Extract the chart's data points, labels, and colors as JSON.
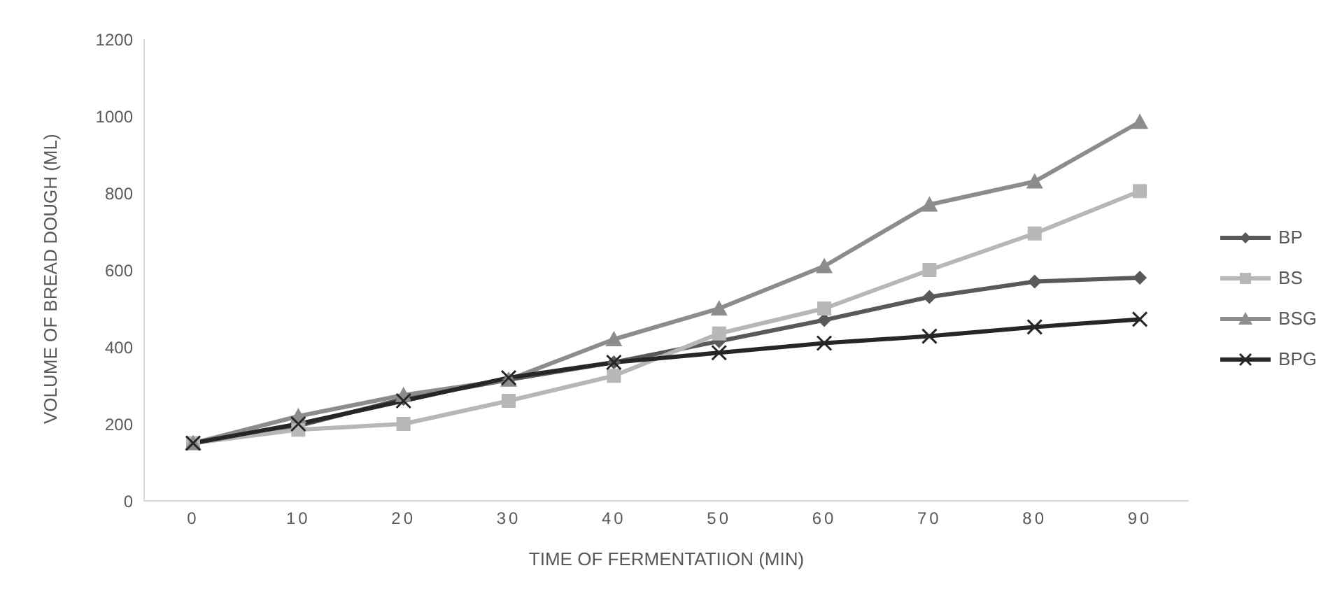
{
  "chart_data": {
    "type": "line",
    "xlabel": "TIME OF FERMENTATIION (MIN)",
    "ylabel": "VOLUME OF BREAD DOUGH (ML)",
    "categories": [
      "0",
      "10",
      "20",
      "30",
      "40",
      "50",
      "60",
      "70",
      "80",
      "90"
    ],
    "series": [
      {
        "name": "BP",
        "color": "#595959",
        "marker": "diamond",
        "values": [
          150,
          195,
          265,
          315,
          360,
          415,
          470,
          530,
          570,
          580
        ]
      },
      {
        "name": "BS",
        "color": "#b7b7b7",
        "marker": "square",
        "values": [
          150,
          185,
          200,
          260,
          325,
          435,
          500,
          600,
          695,
          805
        ]
      },
      {
        "name": "BSG",
        "color": "#8c8c8c",
        "marker": "triangle",
        "values": [
          150,
          220,
          275,
          315,
          420,
          500,
          610,
          770,
          830,
          985
        ]
      },
      {
        "name": "BPG",
        "color": "#262626",
        "marker": "cross",
        "values": [
          150,
          200,
          260,
          320,
          360,
          385,
          410,
          428,
          452,
          472
        ]
      }
    ],
    "ylim": [
      0,
      1200
    ],
    "yticks": [
      0,
      200,
      400,
      600,
      800,
      1000,
      1200
    ],
    "legend": "right",
    "line_style": "solid"
  }
}
